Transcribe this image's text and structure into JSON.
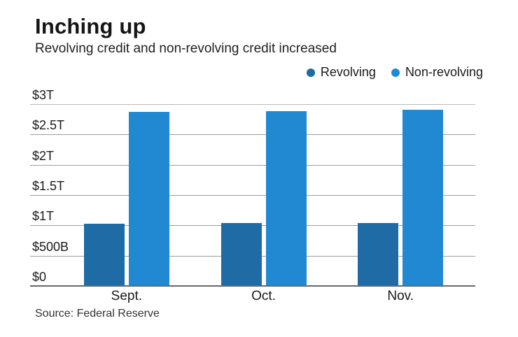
{
  "header": {
    "title": "Inching up",
    "subtitle": "Revolving credit and non-revolving credit increased"
  },
  "source_note": "Source: Federal Reserve",
  "colors": {
    "revolving": "#1e6ba6",
    "non_revolving": "#2189d1"
  },
  "chart_data": {
    "type": "bar",
    "title": "Inching up",
    "subtitle": "Revolving credit and non-revolving credit increased",
    "categories": [
      "Sept.",
      "Oct.",
      "Nov."
    ],
    "series": [
      {
        "name": "Revolving",
        "color": "#1e6ba6",
        "values": [
          1.04,
          1.05,
          1.05
        ]
      },
      {
        "name": "Non-revolving",
        "color": "#2189d1",
        "values": [
          2.89,
          2.9,
          2.92
        ]
      }
    ],
    "units": "trillions of USD",
    "xlabel": "",
    "ylabel": "",
    "ylim": [
      0,
      3
    ],
    "yticks": [
      {
        "label": "$3T",
        "value": 3
      },
      {
        "label": "$2.5T",
        "value": 2.5
      },
      {
        "label": "$2T",
        "value": 2
      },
      {
        "label": "$1.5T",
        "value": 1.5
      },
      {
        "label": "$1T",
        "value": 1
      },
      {
        "label": "$500B",
        "value": 0.5
      },
      {
        "label": "$0",
        "value": 0
      }
    ],
    "grid": "horizontal",
    "legend_position": "top-right"
  }
}
